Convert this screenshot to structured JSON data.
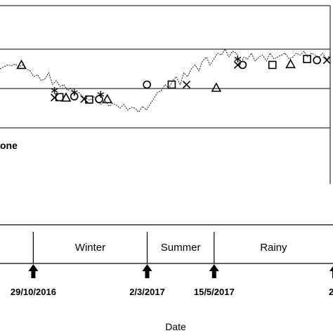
{
  "chart_data": {
    "type": "line",
    "xlabel": "Date",
    "partial_label": "one",
    "reference_lines": [
      1,
      2,
      3
    ],
    "ylim": [
      0,
      4
    ],
    "series": [
      {
        "style": "dashed",
        "values": [
          2.5,
          2.55,
          2.6,
          2.58,
          2.62,
          2.55,
          2.6,
          2.5,
          2.45,
          2.3,
          2.35,
          2.2,
          2.25,
          2.4,
          2.1,
          2.2,
          2.05,
          2.1,
          1.95,
          2.0,
          1.85,
          1.9,
          1.8,
          1.75,
          1.7,
          1.8,
          1.65,
          1.6,
          1.7,
          1.55,
          1.62,
          1.58,
          1.5,
          1.6,
          1.45,
          1.52,
          1.5,
          1.4,
          1.55,
          1.45,
          1.6,
          1.75,
          1.9,
          1.95,
          2.1,
          2.0,
          2.2,
          2.3,
          2.1,
          2.4,
          2.3,
          2.5,
          2.6,
          2.45,
          2.7,
          2.8,
          2.6,
          2.75,
          2.9,
          2.85,
          3.0,
          2.8,
          2.95,
          2.9,
          2.6,
          2.8,
          2.75,
          2.9,
          2.7,
          2.8,
          2.85,
          2.7,
          2.9,
          2.75,
          2.8,
          2.85,
          2.9,
          2.75,
          2.8,
          2.9,
          2.85,
          2.95,
          2.8,
          2.9,
          2.85,
          2.8,
          2.9,
          2.75,
          2.85
        ]
      }
    ],
    "markers": [
      {
        "symbol": "triangle",
        "t": 0.065,
        "y": 2.6
      },
      {
        "symbol": "asterisk",
        "t": 0.165,
        "y": 1.95
      },
      {
        "symbol": "x",
        "t": 0.165,
        "y": 1.77
      },
      {
        "symbol": "square",
        "t": 0.18,
        "y": 1.78
      },
      {
        "symbol": "triangle",
        "t": 0.2,
        "y": 1.77
      },
      {
        "symbol": "asterisk",
        "t": 0.225,
        "y": 1.9
      },
      {
        "symbol": "circle",
        "t": 0.225,
        "y": 1.8
      },
      {
        "symbol": "x",
        "t": 0.255,
        "y": 1.73
      },
      {
        "symbol": "square",
        "t": 0.27,
        "y": 1.72
      },
      {
        "symbol": "asterisk",
        "t": 0.305,
        "y": 1.85
      },
      {
        "symbol": "circle",
        "t": 0.3,
        "y": 1.73
      },
      {
        "symbol": "triangle",
        "t": 0.325,
        "y": 1.73
      },
      {
        "symbol": "circle",
        "t": 0.445,
        "y": 2.1
      },
      {
        "symbol": "square",
        "t": 0.52,
        "y": 2.1
      },
      {
        "symbol": "x",
        "t": 0.565,
        "y": 2.1
      },
      {
        "symbol": "triangle",
        "t": 0.655,
        "y": 2.02
      },
      {
        "symbol": "asterisk",
        "t": 0.72,
        "y": 2.75
      },
      {
        "symbol": "x",
        "t": 0.72,
        "y": 2.6
      },
      {
        "symbol": "circle",
        "t": 0.735,
        "y": 2.6
      },
      {
        "symbol": "square",
        "t": 0.825,
        "y": 2.6
      },
      {
        "symbol": "triangle",
        "t": 0.88,
        "y": 2.62
      },
      {
        "symbol": "square",
        "t": 0.93,
        "y": 2.75
      },
      {
        "symbol": "circle",
        "t": 0.96,
        "y": 2.72
      },
      {
        "symbol": "x",
        "t": 0.99,
        "y": 2.72
      }
    ],
    "seasons": [
      {
        "label": "",
        "t0": 0.0,
        "t1": 0.1
      },
      {
        "label": "Winter",
        "t0": 0.1,
        "t1": 0.442
      },
      {
        "label": "Summer",
        "t0": 0.442,
        "t1": 0.643
      },
      {
        "label": "Rainy",
        "t0": 0.643,
        "t1": 1.0
      }
    ],
    "date_marks": [
      {
        "label": "29/10/2016",
        "t": 0.1
      },
      {
        "label": "2/3/2017",
        "t": 0.442
      },
      {
        "label": "15/5/2017",
        "t": 0.643
      },
      {
        "label": "2",
        "t": 1.0
      }
    ]
  }
}
